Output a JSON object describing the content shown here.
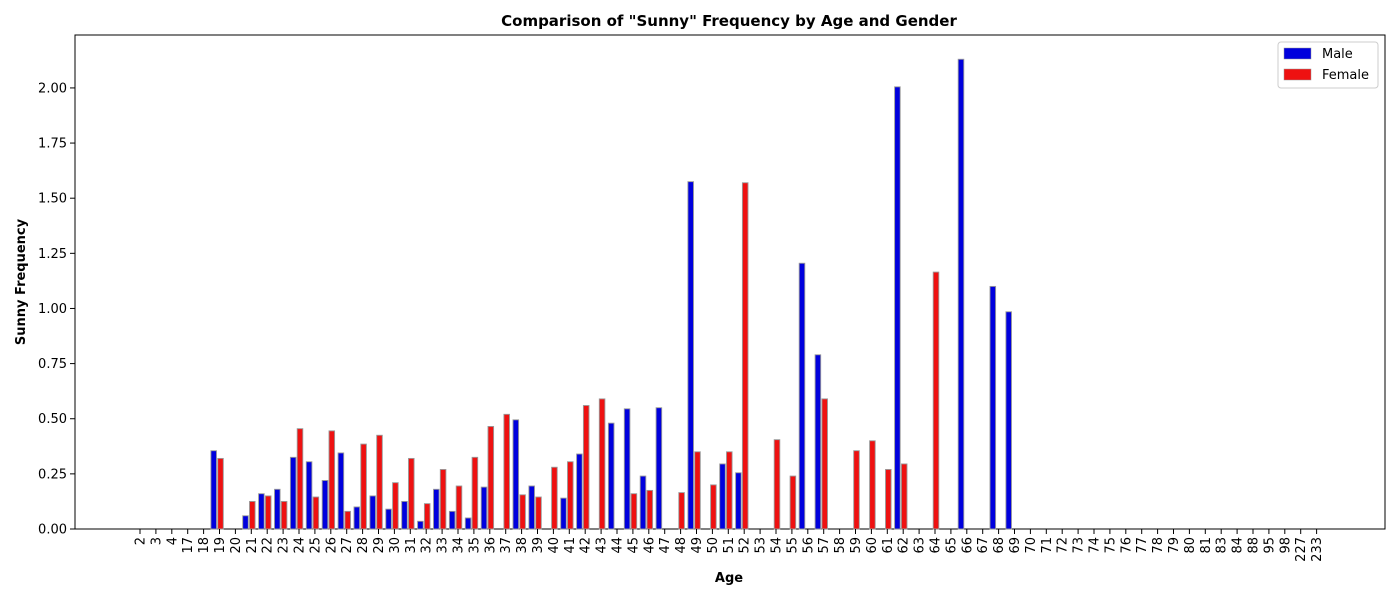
{
  "chart_data": {
    "type": "bar",
    "title": "Comparison of \"Sunny\" Frequency by Age and Gender",
    "xlabel": "Age",
    "ylabel": "Sunny Frequency",
    "ylim": [
      0,
      2.24
    ],
    "yticks": [
      "0.00",
      "0.25",
      "0.50",
      "0.75",
      "1.00",
      "1.25",
      "1.50",
      "1.75",
      "2.00"
    ],
    "grid": false,
    "legend_position": "top-right",
    "categories": [
      "2",
      "3",
      "4",
      "17",
      "18",
      "19",
      "20",
      "21",
      "22",
      "23",
      "24",
      "25",
      "26",
      "27",
      "28",
      "29",
      "30",
      "31",
      "32",
      "33",
      "34",
      "35",
      "36",
      "37",
      "38",
      "39",
      "40",
      "41",
      "42",
      "43",
      "44",
      "45",
      "46",
      "47",
      "48",
      "49",
      "50",
      "51",
      "52",
      "53",
      "54",
      "55",
      "56",
      "57",
      "58",
      "59",
      "60",
      "61",
      "62",
      "63",
      "64",
      "65",
      "66",
      "67",
      "68",
      "69",
      "70",
      "71",
      "72",
      "73",
      "74",
      "75",
      "76",
      "77",
      "78",
      "79",
      "80",
      "81",
      "83",
      "84",
      "88",
      "95",
      "98",
      "227",
      "233"
    ],
    "series": [
      {
        "name": "Male",
        "color": "#0000dd",
        "values": [
          0,
          0,
          0,
          0,
          0,
          0.355,
          0,
          0.06,
          0.16,
          0.18,
          0.325,
          0.305,
          0.22,
          0.345,
          0.1,
          0.15,
          0.09,
          0.125,
          0.035,
          0.18,
          0.08,
          0.05,
          0.19,
          0,
          0.495,
          0.195,
          0,
          0.14,
          0.34,
          0,
          0.48,
          0.545,
          0.24,
          0.55,
          0,
          1.575,
          0,
          0.295,
          0.255,
          0,
          0,
          0,
          1.205,
          0.79,
          0,
          0,
          0,
          0,
          2.005,
          0,
          0,
          0,
          2.13,
          0,
          1.1,
          0.985,
          0,
          0,
          0,
          0,
          0,
          0,
          0,
          0,
          0,
          0,
          0,
          0,
          0,
          0,
          0,
          0,
          0,
          0,
          0
        ]
      },
      {
        "name": "Female",
        "color": "#ee1111",
        "values": [
          0,
          0,
          0,
          0,
          0,
          0.32,
          0,
          0.125,
          0.15,
          0.125,
          0.455,
          0.145,
          0.445,
          0.08,
          0.385,
          0.425,
          0.21,
          0.32,
          0.115,
          0.27,
          0.195,
          0.325,
          0.465,
          0.52,
          0.155,
          0.145,
          0.28,
          0.305,
          0.56,
          0.59,
          0,
          0.16,
          0.175,
          0,
          0.165,
          0.35,
          0.2,
          0.35,
          1.57,
          0,
          0.405,
          0.24,
          0,
          0.59,
          0,
          0.355,
          0.4,
          0.27,
          0.295,
          0,
          1.165,
          0,
          0,
          0,
          0,
          0,
          0,
          0,
          0,
          0,
          0,
          0,
          0,
          0,
          0,
          0,
          0,
          0,
          0,
          0,
          0,
          0,
          0,
          0,
          0
        ]
      }
    ]
  }
}
